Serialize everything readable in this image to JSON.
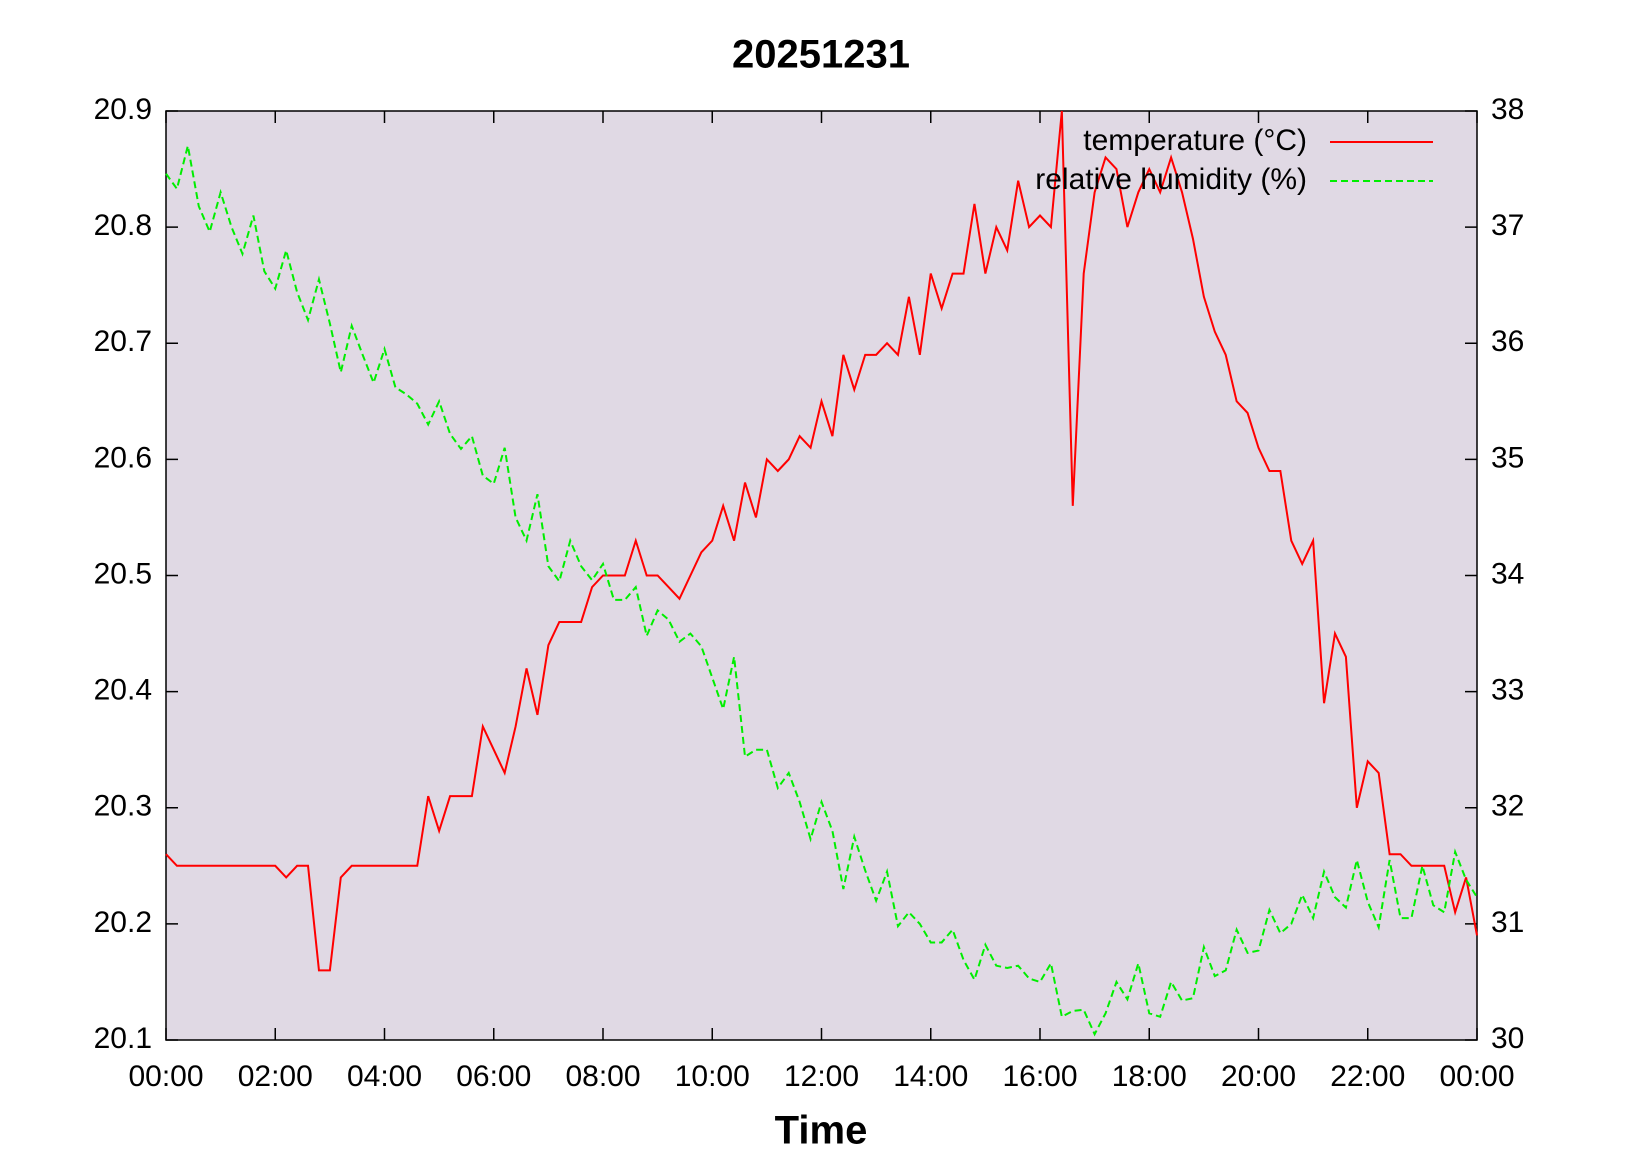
{
  "chart_data": {
    "type": "line",
    "title": "20251231",
    "x_label": "Time",
    "x": [
      0,
      0.2,
      0.4,
      0.6,
      0.8,
      1,
      1.2,
      1.4,
      1.6,
      1.8,
      2,
      2.2,
      2.4,
      2.6,
      2.8,
      3,
      3.2,
      3.4,
      3.6,
      3.8,
      4,
      4.2,
      4.4,
      4.6,
      4.8,
      5,
      5.2,
      5.4,
      5.6,
      5.8,
      6,
      6.2,
      6.4,
      6.6,
      6.8,
      7,
      7.2,
      7.4,
      7.6,
      7.8,
      8,
      8.2,
      8.4,
      8.6,
      8.8,
      9,
      9.2,
      9.4,
      9.6,
      9.8,
      10,
      10.2,
      10.4,
      10.6,
      10.8,
      11,
      11.2,
      11.4,
      11.6,
      11.8,
      12,
      12.2,
      12.4,
      12.6,
      12.8,
      13,
      13.2,
      13.4,
      13.6,
      13.8,
      14,
      14.2,
      14.4,
      14.6,
      14.8,
      15,
      15.2,
      15.4,
      15.6,
      15.8,
      16,
      16.2,
      16.4,
      16.6,
      16.8,
      17,
      17.2,
      17.4,
      17.6,
      17.8,
      18,
      18.2,
      18.4,
      18.6,
      18.8,
      19,
      19.2,
      19.4,
      19.6,
      19.8,
      20,
      20.2,
      20.4,
      20.6,
      20.8,
      21,
      21.2,
      21.4,
      21.6,
      21.8,
      22,
      22.2,
      22.4,
      22.6,
      22.8,
      23,
      23.2,
      23.4,
      23.6,
      23.8,
      24
    ],
    "series": [
      {
        "name": "temperature (°C)",
        "color": "#ff0000",
        "dashed": false,
        "values": [
          20.26,
          20.25,
          20.25,
          20.25,
          20.25,
          20.25,
          20.25,
          20.25,
          20.25,
          20.25,
          20.25,
          20.24,
          20.25,
          20.25,
          20.16,
          20.16,
          20.24,
          20.25,
          20.25,
          20.25,
          20.25,
          20.25,
          20.25,
          20.25,
          20.31,
          20.28,
          20.31,
          20.31,
          20.31,
          20.37,
          20.35,
          20.33,
          20.37,
          20.42,
          20.38,
          20.44,
          20.46,
          20.46,
          20.46,
          20.49,
          20.5,
          20.5,
          20.5,
          20.53,
          20.5,
          20.5,
          20.49,
          20.48,
          20.5,
          20.52,
          20.53,
          20.56,
          20.53,
          20.58,
          20.55,
          20.6,
          20.59,
          20.6,
          20.62,
          20.61,
          20.65,
          20.62,
          20.69,
          20.66,
          20.69,
          20.69,
          20.7,
          20.69,
          20.74,
          20.69,
          20.76,
          20.73,
          20.76,
          20.76,
          20.82,
          20.76,
          20.8,
          20.78,
          20.84,
          20.8,
          20.81,
          20.8,
          20.9,
          20.56,
          20.76,
          20.83,
          20.86,
          20.85,
          20.8,
          20.83,
          20.85,
          20.83,
          20.86,
          20.83,
          20.79,
          20.74,
          20.71,
          20.69,
          20.65,
          20.64,
          20.61,
          20.59,
          20.59,
          20.53,
          20.51,
          20.53,
          20.39,
          20.45,
          20.43,
          20.3,
          20.34,
          20.33,
          20.26,
          20.26,
          20.25,
          20.25,
          20.25,
          20.25,
          20.21,
          20.24,
          20.19
        ]
      },
      {
        "name": "relative humidity (%)",
        "color": "#00ee00",
        "dashed": true,
        "axis": "y2",
        "values": [
          37.46,
          37.33,
          37.7,
          37.18,
          36.96,
          37.3,
          37.0,
          36.77,
          37.1,
          36.62,
          36.47,
          36.8,
          36.44,
          36.2,
          36.55,
          36.17,
          35.75,
          36.15,
          35.9,
          35.66,
          35.95,
          35.62,
          35.56,
          35.48,
          35.3,
          35.5,
          35.22,
          35.09,
          35.2,
          34.86,
          34.79,
          35.1,
          34.5,
          34.3,
          34.7,
          34.08,
          33.95,
          34.3,
          34.08,
          33.96,
          34.1,
          33.79,
          33.79,
          33.9,
          33.48,
          33.7,
          33.62,
          33.43,
          33.5,
          33.39,
          33.12,
          32.85,
          33.3,
          32.44,
          32.5,
          32.5,
          32.17,
          32.3,
          32.05,
          31.73,
          32.05,
          31.8,
          31.3,
          31.75,
          31.46,
          31.2,
          31.45,
          30.98,
          31.1,
          31.0,
          30.84,
          30.84,
          30.95,
          30.69,
          30.52,
          30.82,
          30.64,
          30.62,
          30.64,
          30.53,
          30.5,
          30.66,
          30.2,
          30.25,
          30.26,
          30.05,
          30.23,
          30.5,
          30.35,
          30.66,
          30.23,
          30.2,
          30.5,
          30.34,
          30.36,
          30.8,
          30.55,
          30.6,
          30.95,
          30.75,
          30.77,
          31.12,
          30.92,
          31.0,
          31.25,
          31.05,
          31.45,
          31.23,
          31.14,
          31.55,
          31.19,
          30.97,
          31.55,
          31.05,
          31.05,
          31.5,
          31.16,
          31.1,
          31.62,
          31.38,
          31.23
        ]
      }
    ],
    "xlim": [
      0,
      24
    ],
    "xticks": [
      {
        "value": 0,
        "label": "00:00"
      },
      {
        "value": 2,
        "label": "02:00"
      },
      {
        "value": 4,
        "label": "04:00"
      },
      {
        "value": 6,
        "label": "06:00"
      },
      {
        "value": 8,
        "label": "08:00"
      },
      {
        "value": 10,
        "label": "10:00"
      },
      {
        "value": 12,
        "label": "12:00"
      },
      {
        "value": 14,
        "label": "14:00"
      },
      {
        "value": 16,
        "label": "16:00"
      },
      {
        "value": 18,
        "label": "18:00"
      },
      {
        "value": 20,
        "label": "20:00"
      },
      {
        "value": 22,
        "label": "22:00"
      },
      {
        "value": 24,
        "label": "00:00"
      }
    ],
    "ylim": [
      20.1,
      20.9
    ],
    "yticks": [
      20.1,
      20.2,
      20.3,
      20.4,
      20.5,
      20.6,
      20.7,
      20.8,
      20.9
    ],
    "y2lim": [
      30,
      38
    ],
    "y2ticks": [
      30,
      31,
      32,
      33,
      34,
      35,
      36,
      37,
      38
    ],
    "grid": false,
    "legend": "top-right",
    "background": "#e0d9e4"
  }
}
